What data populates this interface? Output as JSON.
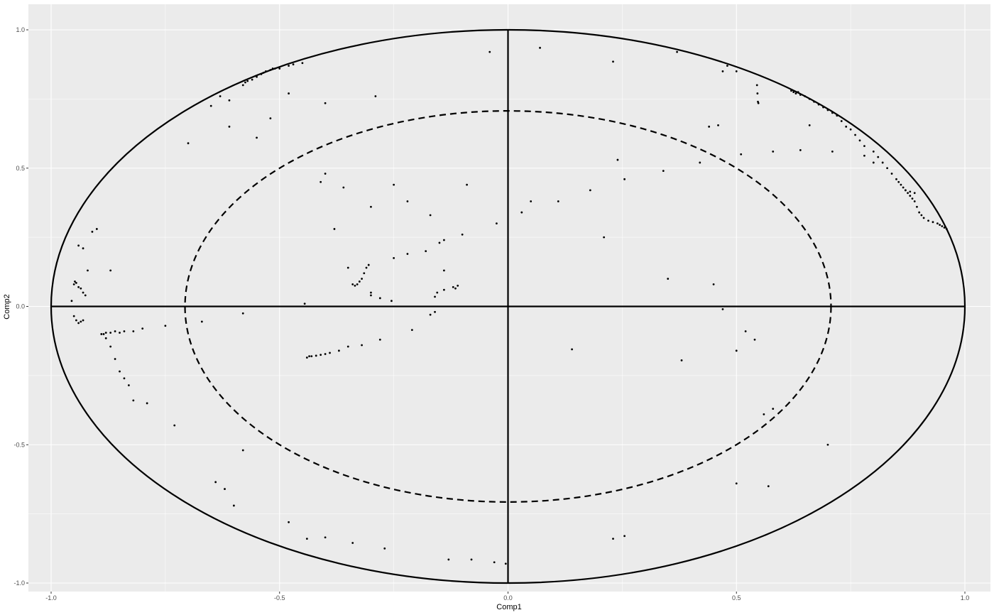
{
  "chart_data": {
    "type": "scatter",
    "title": "",
    "xlabel": "Comp1",
    "ylabel": "Comp2",
    "xlim": [
      -1.0,
      1.0
    ],
    "ylim": [
      -1.0,
      1.0
    ],
    "x_ticks": [
      -1.0,
      -0.5,
      0.0,
      0.5,
      1.0
    ],
    "x_tick_labels": [
      "-1.0",
      "-0.5",
      "0.0",
      "0.5",
      "1.0"
    ],
    "y_ticks": [
      -1.0,
      -0.5,
      0.0,
      0.5,
      1.0
    ],
    "y_tick_labels": [
      "-1.0",
      "-0.5",
      "0.0",
      "0.5",
      "1.0"
    ],
    "grid": true,
    "legend": "none",
    "colors": {
      "panel_background": "#ebebeb",
      "grid": "#ffffff",
      "point": "#000000",
      "circle": "#000000"
    },
    "reference_circles": [
      {
        "radius": 1.0,
        "style": "solid"
      },
      {
        "radius": 0.707,
        "style": "dashed"
      }
    ],
    "reference_lines": [
      {
        "axis": "x",
        "value": 0
      },
      {
        "axis": "y",
        "value": 0
      }
    ],
    "x": [
      -0.63,
      -0.58,
      -0.575,
      -0.57,
      -0.56,
      -0.55,
      -0.54,
      -0.535,
      -0.53,
      -0.52,
      -0.515,
      -0.51,
      -0.5,
      -0.48,
      -0.47,
      -0.45,
      -0.04,
      0.07,
      0.23,
      -0.48,
      -0.4,
      -0.29,
      -0.65,
      -0.61,
      -0.52,
      -0.55,
      -0.7,
      -0.61,
      -0.4,
      -0.41,
      -0.36,
      -0.3,
      -0.25,
      -0.22,
      -0.17,
      -0.15,
      -0.14,
      -0.1,
      -0.09,
      -0.025,
      -0.38,
      -0.35,
      -0.255,
      -0.3,
      -0.305,
      -0.31,
      -0.315,
      -0.32,
      -0.325,
      -0.33,
      -0.335,
      -0.34,
      -0.3,
      -0.28,
      -0.25,
      -0.22,
      -0.18,
      -0.14,
      -0.12,
      -0.115,
      -0.11,
      -0.16,
      -0.155,
      -0.14,
      -0.445,
      0.03,
      0.05,
      0.11,
      0.18,
      0.21,
      0.24,
      0.255,
      0.34,
      0.37,
      0.42,
      0.44,
      0.46,
      0.47,
      0.48,
      0.5,
      0.51,
      0.545,
      0.546,
      0.547,
      0.548,
      0.58,
      0.64,
      0.66,
      0.62,
      0.625,
      0.63,
      0.635,
      0.64,
      0.65,
      0.66,
      0.67,
      0.68,
      0.69,
      0.7,
      0.71,
      0.72,
      0.73,
      0.74,
      0.75,
      0.76,
      0.77,
      0.78,
      0.8,
      0.81,
      0.82,
      0.83,
      0.84,
      0.85,
      0.855,
      0.86,
      0.865,
      0.87,
      0.875,
      0.88,
      0.885,
      0.89,
      0.895,
      0.9,
      0.905,
      0.91,
      0.92,
      0.93,
      0.94,
      0.945,
      0.95,
      0.955,
      0.96,
      0.87,
      0.88,
      0.89,
      0.8,
      0.78,
      0.71,
      -0.955,
      -0.95,
      -0.948,
      -0.945,
      -0.94,
      -0.935,
      -0.93,
      -0.925,
      -0.92,
      -0.91,
      -0.9,
      -0.87,
      -0.93,
      -0.94,
      -0.95,
      -0.945,
      -0.94,
      -0.935,
      -0.93,
      -0.89,
      -0.885,
      -0.88,
      -0.87,
      -0.86,
      -0.85,
      -0.84,
      -0.82,
      -0.8,
      -0.75,
      -0.88,
      -0.87,
      -0.86,
      -0.85,
      -0.84,
      -0.83,
      -0.82,
      -0.79,
      -0.73,
      -0.67,
      -0.44,
      -0.435,
      -0.43,
      -0.42,
      -0.41,
      -0.4,
      -0.39,
      -0.37,
      -0.35,
      -0.32,
      -0.28,
      -0.21,
      -0.17,
      -0.16,
      -0.58,
      0.35,
      0.45,
      0.47,
      0.14,
      0.38,
      0.5,
      0.52,
      0.54,
      0.58,
      0.56,
      -0.64,
      -0.62,
      -0.6,
      -0.58,
      -0.48,
      -0.44,
      -0.4,
      -0.34,
      -0.27,
      -0.13,
      -0.08,
      -0.03,
      -0.005,
      0.23,
      0.255,
      0.5,
      0.57,
      0.7
    ],
    "y": [
      0.76,
      0.8,
      0.81,
      0.815,
      0.82,
      0.83,
      0.84,
      0.845,
      0.85,
      0.855,
      0.86,
      0.86,
      0.86,
      0.87,
      0.875,
      0.88,
      0.92,
      0.935,
      0.885,
      0.77,
      0.735,
      0.76,
      0.725,
      0.745,
      0.68,
      0.61,
      0.59,
      0.65,
      0.48,
      0.45,
      0.43,
      0.36,
      0.44,
      0.38,
      0.33,
      0.23,
      0.24,
      0.26,
      0.44,
      0.3,
      0.28,
      0.14,
      0.02,
      0.04,
      0.15,
      0.14,
      0.12,
      0.1,
      0.09,
      0.08,
      0.075,
      0.08,
      0.05,
      0.03,
      0.175,
      0.19,
      0.2,
      0.13,
      0.07,
      0.065,
      0.075,
      0.035,
      0.05,
      0.06,
      0.01,
      0.34,
      0.38,
      0.38,
      0.42,
      0.25,
      0.53,
      0.46,
      0.49,
      0.92,
      0.52,
      0.65,
      0.655,
      0.85,
      0.87,
      0.85,
      0.55,
      0.8,
      0.77,
      0.74,
      0.735,
      0.56,
      0.565,
      0.655,
      0.78,
      0.775,
      0.77,
      0.775,
      0.765,
      0.76,
      0.75,
      0.74,
      0.73,
      0.72,
      0.71,
      0.7,
      0.69,
      0.67,
      0.65,
      0.64,
      0.62,
      0.6,
      0.58,
      0.56,
      0.54,
      0.52,
      0.5,
      0.48,
      0.46,
      0.45,
      0.44,
      0.43,
      0.42,
      0.41,
      0.4,
      0.39,
      0.38,
      0.36,
      0.34,
      0.33,
      0.32,
      0.31,
      0.305,
      0.3,
      0.295,
      0.29,
      0.285,
      0.28,
      0.42,
      0.415,
      0.41,
      0.52,
      0.545,
      0.56,
      0.02,
      0.08,
      0.09,
      0.085,
      0.07,
      0.065,
      0.05,
      0.04,
      0.13,
      0.27,
      0.28,
      0.13,
      0.21,
      0.22,
      -0.035,
      -0.05,
      -0.06,
      -0.055,
      -0.05,
      -0.1,
      -0.1,
      -0.095,
      -0.095,
      -0.09,
      -0.095,
      -0.09,
      -0.09,
      -0.08,
      -0.07,
      -0.115,
      -0.145,
      -0.19,
      -0.235,
      -0.26,
      -0.285,
      -0.34,
      -0.35,
      -0.43,
      -0.055,
      -0.185,
      -0.18,
      -0.18,
      -0.178,
      -0.175,
      -0.172,
      -0.168,
      -0.16,
      -0.145,
      -0.14,
      -0.12,
      -0.085,
      -0.03,
      -0.02,
      -0.025,
      0.1,
      0.08,
      -0.01,
      -0.155,
      -0.195,
      -0.16,
      -0.09,
      -0.12,
      -0.37,
      -0.39,
      -0.635,
      -0.66,
      -0.72,
      -0.52,
      -0.78,
      -0.84,
      -0.835,
      -0.855,
      -0.875,
      -0.915,
      -0.915,
      -0.925,
      -0.93,
      -0.84,
      -0.83,
      -0.64,
      -0.65,
      -0.5
    ]
  }
}
